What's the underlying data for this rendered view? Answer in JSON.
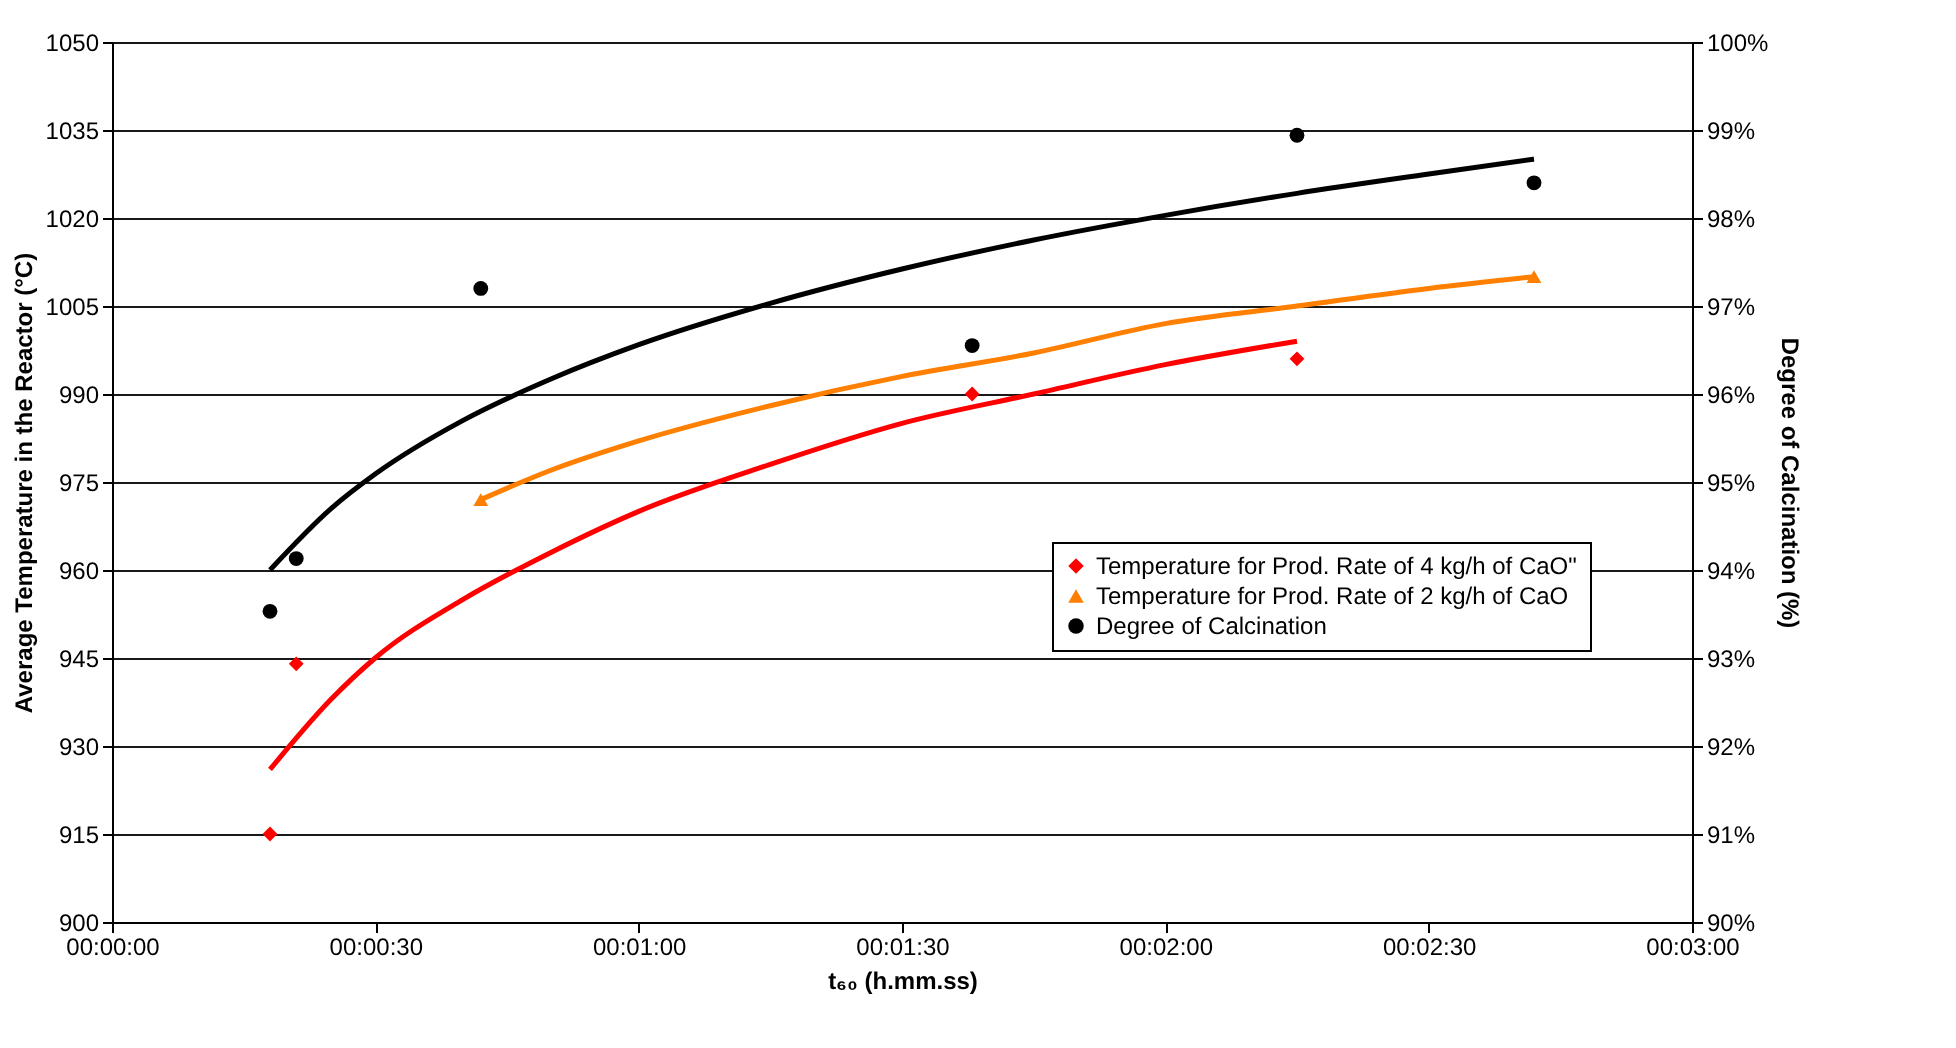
{
  "chart_data": {
    "type": "scatter",
    "xlabel": "t₆₀ (h.mm.ss)",
    "ylabel": "Average Temperature in the Reactor (°C)",
    "y2label": "Degree of Calcination (%)",
    "xlim": [
      0,
      0.05
    ],
    "xticks": [
      {
        "value": 0,
        "label": "00:00:00"
      },
      {
        "value": 0.008333,
        "label": "00:00:30"
      },
      {
        "value": 0.016667,
        "label": "00:01:00"
      },
      {
        "value": 0.025,
        "label": "00:01:30"
      },
      {
        "value": 0.033333,
        "label": "00:02:00"
      },
      {
        "value": 0.041667,
        "label": "00:02:30"
      },
      {
        "value": 0.05,
        "label": "00:03:00"
      }
    ],
    "ylim": [
      900,
      1050
    ],
    "yticks": [
      900,
      915,
      930,
      945,
      960,
      975,
      990,
      1005,
      1020,
      1035,
      1050
    ],
    "y2lim": [
      90,
      100
    ],
    "y2ticks": [
      {
        "value": 90,
        "label": "90%"
      },
      {
        "value": 91,
        "label": "91%"
      },
      {
        "value": 92,
        "label": "92%"
      },
      {
        "value": 93,
        "label": "93%"
      },
      {
        "value": 94,
        "label": "94%"
      },
      {
        "value": 95,
        "label": "95%"
      },
      {
        "value": 96,
        "label": "96%"
      },
      {
        "value": 97,
        "label": "97%"
      },
      {
        "value": 98,
        "label": "98%"
      },
      {
        "value": 99,
        "label": "99%"
      },
      {
        "value": 100,
        "label": "100%"
      }
    ],
    "grid": "y",
    "legend": "right",
    "series": [
      {
        "type": "line",
        "color": "#ff0000",
        "x": [
          0.005,
          0.00694,
          0.00833,
          0.01111,
          0.01389,
          0.01667,
          0.02083,
          0.025,
          0.02917,
          0.03333,
          0.0375
        ],
        "values": [
          926,
          938,
          945,
          955,
          963,
          970,
          978,
          985,
          990,
          995,
          999
        ]
      },
      {
        "type": "line",
        "color": "#ff7f00",
        "x": [
          0.01167,
          0.01389,
          0.01667,
          0.02083,
          0.025,
          0.02917,
          0.03333,
          0.0375,
          0.04167,
          0.045
        ],
        "values": [
          972,
          977,
          982,
          988,
          993,
          997,
          1002,
          1005,
          1008,
          1010
        ]
      },
      {
        "type": "line",
        "color": "#000000",
        "axis": "y2",
        "x": [
          0.005,
          0.00694,
          0.00833,
          0.01111,
          0.01389,
          0.01667,
          0.02083,
          0.025,
          0.02917,
          0.03333,
          0.0375,
          0.04167,
          0.045
        ],
        "values": [
          94.0,
          94.7,
          95.09,
          95.7,
          96.17,
          96.56,
          97.03,
          97.42,
          97.75,
          98.03,
          98.28,
          98.5,
          98.67
        ]
      },
      {
        "name": "Temperature for Prod. Rate of 4 kg/h of CaO\"",
        "color": "#ff0000",
        "marker": "diamond",
        "x": [
          0.005,
          0.00583,
          0.02722,
          0.0375
        ],
        "values": [
          915,
          944,
          990,
          996
        ]
      },
      {
        "name": "Temperature for Prod. Rate of 2 kg/h of CaO",
        "color": "#ff7f00",
        "marker": "triangle",
        "x": [
          0.01167,
          0.045
        ],
        "values": [
          972,
          1010
        ]
      },
      {
        "name": "Degree of Calcination",
        "color": "#000000",
        "marker": "circle",
        "axis": "y2",
        "x": [
          0.005,
          0.00583,
          0.01167,
          0.02722,
          0.0375,
          0.045
        ],
        "values": [
          93.53,
          94.13,
          97.2,
          96.55,
          98.94,
          98.4
        ]
      }
    ]
  }
}
